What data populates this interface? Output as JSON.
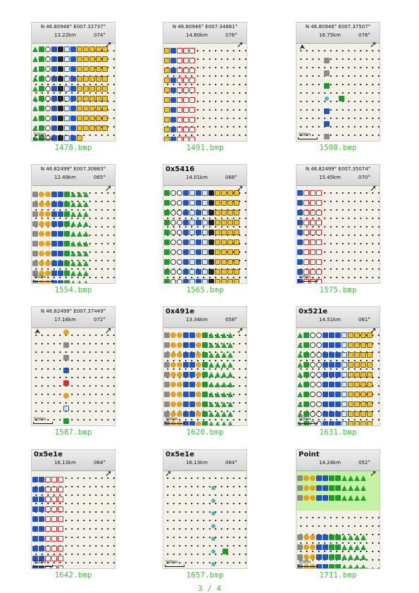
{
  "tiles": [
    {
      "caption": "1478.bmp",
      "coords": "N 46.80946° E007.32737°",
      "distance": "13.22km",
      "bearing": "074°",
      "scale": "500m"
    },
    {
      "caption": "1491.bmp",
      "coords": "N 46.80946° E007.34881°",
      "distance": "14.80km",
      "bearing": "076°",
      "scale": ""
    },
    {
      "caption": "1508.bmp",
      "coords": "N 46.80946° E007.37507°",
      "distance": "16.75km",
      "bearing": "078°",
      "scale": "500m"
    },
    {
      "caption": "1554.bmp",
      "coords": "N 46.82499° E007.30883°",
      "distance": "12.49km",
      "bearing": "065°",
      "scale": "500m"
    },
    {
      "caption": "1565.bmp",
      "title": "0x5416",
      "distance": "14.01km",
      "bearing": "068°",
      "scale": ""
    },
    {
      "caption": "1575.bmp",
      "coords": "N 46.82499° E007.35074°",
      "distance": "15.45km",
      "bearing": "070°",
      "scale": "500m"
    },
    {
      "caption": "1587.bmp",
      "coords": "N 46.82499° E007.37449°",
      "distance": "17.16km",
      "bearing": "072°",
      "scale": "500m"
    },
    {
      "caption": "1620.bmp",
      "title": "0x491e",
      "distance": "13.34km",
      "bearing": "058°",
      "scale": "500m"
    },
    {
      "caption": "1631.bmp",
      "title": "0x521e",
      "distance": "14.51km",
      "bearing": "061°",
      "scale": "500m"
    },
    {
      "caption": "1642.bmp",
      "title": "0x5e1e",
      "distance": "16.13km",
      "bearing": "064°",
      "scale": "500m"
    },
    {
      "caption": "1657.bmp",
      "title": "0x5e1e",
      "distance": "16.13km",
      "bearing": "064°",
      "scale": "500m"
    },
    {
      "caption": "1711.bmp",
      "title": "Point",
      "distance": "14.24km",
      "bearing": "052°",
      "scale": "500m"
    }
  ],
  "page_indicator": "3 / 4",
  "icons": {
    "north": "north-arrow-icon",
    "cursor": "pointer-arrow-icon"
  },
  "colors": {
    "caption": "#3fbf3f",
    "map_bg": "#f3f1e7",
    "header_bg": "#dcdcdc",
    "poi_green": "#1c9a2a",
    "poi_red": "#e21d1d",
    "poi_blue": "#2354b8",
    "poi_yellow": "#f2c218"
  }
}
